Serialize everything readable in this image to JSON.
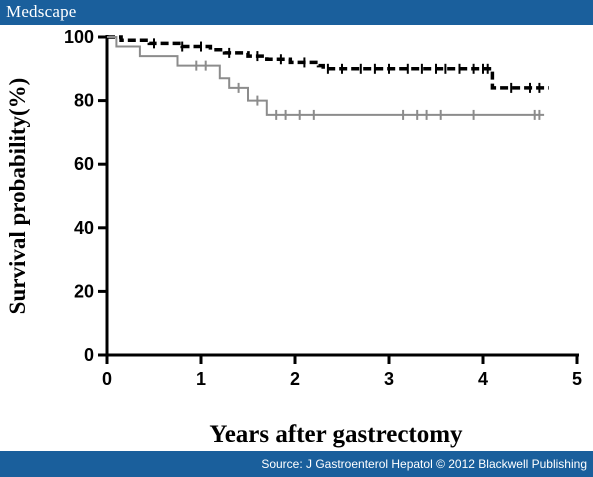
{
  "header": {
    "brand": "Medscape"
  },
  "footer": {
    "source": "Source: J Gastroenterol Hepatol © 2012 Blackwell Publishing"
  },
  "colors": {
    "bar": "#1a5f9c",
    "series_dark": "#000000",
    "series_gray": "#8c8c8c"
  },
  "chart_data": {
    "type": "line",
    "title": "",
    "xlabel": "Years after gastrectomy",
    "ylabel": "Survival probability(%)",
    "xlim": [
      0,
      5
    ],
    "ylim": [
      0,
      100
    ],
    "x_ticks": [
      "0",
      "1",
      "2",
      "3",
      "4",
      "5"
    ],
    "y_ticks": [
      "0",
      "20",
      "40",
      "60",
      "80",
      "100"
    ],
    "grid": false,
    "legend": "none",
    "series": [
      {
        "style": "dashed-black",
        "points": [
          [
            0,
            100
          ],
          [
            0.15,
            100
          ],
          [
            0.15,
            99
          ],
          [
            0.45,
            99
          ],
          [
            0.45,
            98
          ],
          [
            0.8,
            98
          ],
          [
            0.8,
            97
          ],
          [
            1.1,
            97
          ],
          [
            1.1,
            96
          ],
          [
            1.25,
            96
          ],
          [
            1.25,
            95
          ],
          [
            1.5,
            95
          ],
          [
            1.5,
            94
          ],
          [
            1.7,
            94
          ],
          [
            1.7,
            93
          ],
          [
            1.95,
            93
          ],
          [
            1.95,
            92
          ],
          [
            2.25,
            92
          ],
          [
            2.25,
            91
          ],
          [
            2.3,
            91
          ],
          [
            2.3,
            90
          ],
          [
            4.1,
            90
          ],
          [
            4.1,
            84
          ],
          [
            4.7,
            84
          ]
        ],
        "censor_x": [
          0.5,
          0.8,
          1.0,
          1.3,
          1.6,
          1.85,
          2.1,
          2.35,
          2.5,
          2.7,
          2.85,
          3.0,
          3.2,
          3.35,
          3.5,
          3.6,
          3.75,
          3.9,
          4.0,
          4.05,
          4.3,
          4.5,
          4.6
        ]
      },
      {
        "style": "solid-gray",
        "points": [
          [
            0,
            100
          ],
          [
            0.1,
            100
          ],
          [
            0.1,
            97
          ],
          [
            0.35,
            97
          ],
          [
            0.35,
            94
          ],
          [
            0.75,
            94
          ],
          [
            0.75,
            91
          ],
          [
            1.2,
            91
          ],
          [
            1.2,
            87
          ],
          [
            1.3,
            87
          ],
          [
            1.3,
            84
          ],
          [
            1.5,
            84
          ],
          [
            1.5,
            80
          ],
          [
            1.7,
            80
          ],
          [
            1.7,
            75.5
          ],
          [
            4.65,
            75.5
          ]
        ],
        "censor_x": [
          0.95,
          1.05,
          1.4,
          1.6,
          1.8,
          1.9,
          2.05,
          2.2,
          3.15,
          3.3,
          3.4,
          3.55,
          3.9,
          4.55,
          4.6
        ]
      }
    ]
  }
}
